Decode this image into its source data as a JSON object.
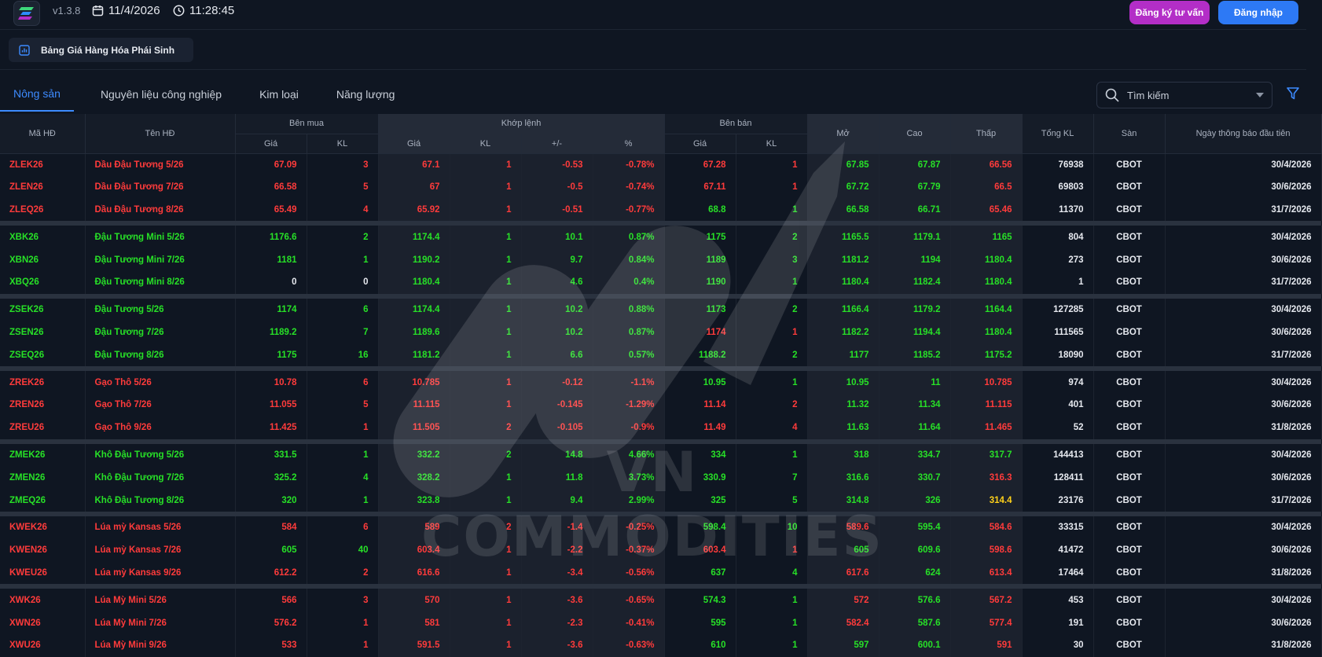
{
  "header": {
    "version": "v1.3.8",
    "date": "11/4/2026",
    "time": "11:28:45",
    "consult_label": "Đăng ký tư vấn",
    "login_label": "Đăng nhập"
  },
  "page_tab": {
    "label": "Bảng Giá Hàng Hóa Phái Sinh"
  },
  "category_tabs": [
    "Nông sản",
    "Nguyên liệu công nghiệp",
    "Kim loại",
    "Năng lượng"
  ],
  "search": {
    "placeholder": "Tìm kiếm"
  },
  "watermark": {
    "text": "VN COMMODITIES"
  },
  "table": {
    "headers": {
      "ma_hd": "Mã HĐ",
      "ten_hd": "Tên HĐ",
      "ben_mua": "Bên mua",
      "khop_lenh": "Khớp lệnh",
      "ben_ban": "Bên bán",
      "mo": "Mở",
      "cao": "Cao",
      "thap": "Thấp",
      "tong_kl": "Tổng KL",
      "san": "Sàn",
      "ngay_tb": "Ngày thông báo đầu tiên",
      "gia": "Giá",
      "kl": "KL",
      "change": "+/-",
      "pct": "%"
    },
    "groups": [
      [
        {
          "code": "ZLEK26",
          "name": "Dầu Đậu Tương 5/26",
          "buy_price": "67.09",
          "buy_kl": "3",
          "match_price": "67.1",
          "match_kl": "1",
          "change": "-0.53",
          "pct": "-0.78%",
          "sell_price": "67.28",
          "sell_kl": "1",
          "open": "67.85",
          "high": "67.87",
          "low": "66.56",
          "total_kl": "76938",
          "exchange": "CBOT",
          "notice_date": "30/4/2026",
          "colors": {
            "code": "red",
            "buy_price": "red",
            "buy_kl": "red",
            "match_price": "red",
            "match_kl": "red",
            "change": "red",
            "pct": "red",
            "sell_price": "red",
            "sell_kl": "red",
            "open": "green",
            "high": "green",
            "low": "red"
          }
        },
        {
          "code": "ZLEN26",
          "name": "Dầu Đậu Tương 7/26",
          "buy_price": "66.58",
          "buy_kl": "5",
          "match_price": "67",
          "match_kl": "1",
          "change": "-0.5",
          "pct": "-0.74%",
          "sell_price": "67.11",
          "sell_kl": "1",
          "open": "67.72",
          "high": "67.79",
          "low": "66.5",
          "total_kl": "69803",
          "exchange": "CBOT",
          "notice_date": "30/6/2026",
          "colors": {
            "code": "red",
            "buy_price": "red",
            "buy_kl": "red",
            "match_price": "red",
            "match_kl": "red",
            "change": "red",
            "pct": "red",
            "sell_price": "red",
            "sell_kl": "red",
            "open": "green",
            "high": "green",
            "low": "red"
          }
        },
        {
          "code": "ZLEQ26",
          "name": "Dầu Đậu Tương 8/26",
          "buy_price": "65.49",
          "buy_kl": "4",
          "match_price": "65.92",
          "match_kl": "1",
          "change": "-0.51",
          "pct": "-0.77%",
          "sell_price": "68.8",
          "sell_kl": "1",
          "open": "66.58",
          "high": "66.71",
          "low": "65.46",
          "total_kl": "11370",
          "exchange": "CBOT",
          "notice_date": "31/7/2026",
          "colors": {
            "code": "red",
            "buy_price": "red",
            "buy_kl": "red",
            "match_price": "red",
            "match_kl": "red",
            "change": "red",
            "pct": "red",
            "sell_price": "green",
            "sell_kl": "green",
            "open": "green",
            "high": "green",
            "low": "red"
          }
        }
      ],
      [
        {
          "code": "XBK26",
          "name": "Đậu Tương Mini 5/26",
          "buy_price": "1176.6",
          "buy_kl": "2",
          "match_price": "1174.4",
          "match_kl": "1",
          "change": "10.1",
          "pct": "0.87%",
          "sell_price": "1175",
          "sell_kl": "2",
          "open": "1165.5",
          "high": "1179.1",
          "low": "1165",
          "total_kl": "804",
          "exchange": "CBOT",
          "notice_date": "30/4/2026",
          "colors": {
            "code": "green",
            "buy_price": "green",
            "buy_kl": "green",
            "match_price": "green",
            "match_kl": "green",
            "change": "green",
            "pct": "green",
            "sell_price": "green",
            "sell_kl": "green",
            "open": "green",
            "high": "green",
            "low": "green"
          }
        },
        {
          "code": "XBN26",
          "name": "Đậu Tương Mini 7/26",
          "buy_price": "1181",
          "buy_kl": "1",
          "match_price": "1190.2",
          "match_kl": "1",
          "change": "9.7",
          "pct": "0.84%",
          "sell_price": "1189",
          "sell_kl": "3",
          "open": "1181.2",
          "high": "1194",
          "low": "1180.4",
          "total_kl": "273",
          "exchange": "CBOT",
          "notice_date": "30/6/2026",
          "colors": {
            "code": "green",
            "buy_price": "green",
            "buy_kl": "green",
            "match_price": "green",
            "match_kl": "green",
            "change": "green",
            "pct": "green",
            "sell_price": "green",
            "sell_kl": "green",
            "open": "green",
            "high": "green",
            "low": "green"
          }
        },
        {
          "code": "XBQ26",
          "name": "Đậu Tương Mini 8/26",
          "buy_price": "0",
          "buy_kl": "0",
          "match_price": "1180.4",
          "match_kl": "1",
          "change": "4.6",
          "pct": "0.4%",
          "sell_price": "1190",
          "sell_kl": "1",
          "open": "1180.4",
          "high": "1182.4",
          "low": "1180.4",
          "total_kl": "1",
          "exchange": "CBOT",
          "notice_date": "31/7/2026",
          "colors": {
            "code": "green",
            "buy_price": "white",
            "buy_kl": "white",
            "match_price": "green",
            "match_kl": "green",
            "change": "green",
            "pct": "green",
            "sell_price": "green",
            "sell_kl": "green",
            "open": "green",
            "high": "green",
            "low": "green"
          }
        }
      ],
      [
        {
          "code": "ZSEK26",
          "name": "Đậu Tương 5/26",
          "buy_price": "1174",
          "buy_kl": "6",
          "match_price": "1174.4",
          "match_kl": "1",
          "change": "10.2",
          "pct": "0.88%",
          "sell_price": "1173",
          "sell_kl": "2",
          "open": "1166.4",
          "high": "1179.2",
          "low": "1164.4",
          "total_kl": "127285",
          "exchange": "CBOT",
          "notice_date": "30/4/2026",
          "colors": {
            "code": "green",
            "buy_price": "green",
            "buy_kl": "green",
            "match_price": "green",
            "match_kl": "green",
            "change": "green",
            "pct": "green",
            "sell_price": "green",
            "sell_kl": "green",
            "open": "green",
            "high": "green",
            "low": "green"
          }
        },
        {
          "code": "ZSEN26",
          "name": "Đậu Tương 7/26",
          "buy_price": "1189.2",
          "buy_kl": "7",
          "match_price": "1189.6",
          "match_kl": "1",
          "change": "10.2",
          "pct": "0.87%",
          "sell_price": "1174",
          "sell_kl": "1",
          "open": "1182.2",
          "high": "1194.4",
          "low": "1180.4",
          "total_kl": "111565",
          "exchange": "CBOT",
          "notice_date": "30/6/2026",
          "colors": {
            "code": "green",
            "buy_price": "green",
            "buy_kl": "green",
            "match_price": "green",
            "match_kl": "green",
            "change": "green",
            "pct": "green",
            "sell_price": "red",
            "sell_kl": "red",
            "open": "green",
            "high": "green",
            "low": "green"
          }
        },
        {
          "code": "ZSEQ26",
          "name": "Đậu Tương 8/26",
          "buy_price": "1175",
          "buy_kl": "16",
          "match_price": "1181.2",
          "match_kl": "1",
          "change": "6.6",
          "pct": "0.57%",
          "sell_price": "1188.2",
          "sell_kl": "2",
          "open": "1177",
          "high": "1185.2",
          "low": "1175.2",
          "total_kl": "18090",
          "exchange": "CBOT",
          "notice_date": "31/7/2026",
          "colors": {
            "code": "green",
            "buy_price": "green",
            "buy_kl": "green",
            "match_price": "green",
            "match_kl": "green",
            "change": "green",
            "pct": "green",
            "sell_price": "green",
            "sell_kl": "green",
            "open": "green",
            "high": "green",
            "low": "green"
          }
        }
      ],
      [
        {
          "code": "ZREK26",
          "name": "Gạo Thô 5/26",
          "buy_price": "10.78",
          "buy_kl": "6",
          "match_price": "10.785",
          "match_kl": "1",
          "change": "-0.12",
          "pct": "-1.1%",
          "sell_price": "10.95",
          "sell_kl": "1",
          "open": "10.95",
          "high": "11",
          "low": "10.785",
          "total_kl": "974",
          "exchange": "CBOT",
          "notice_date": "30/4/2026",
          "colors": {
            "code": "red",
            "buy_price": "red",
            "buy_kl": "red",
            "match_price": "red",
            "match_kl": "red",
            "change": "red",
            "pct": "red",
            "sell_price": "green",
            "sell_kl": "green",
            "open": "green",
            "high": "green",
            "low": "red"
          }
        },
        {
          "code": "ZREN26",
          "name": "Gạo Thô 7/26",
          "buy_price": "11.055",
          "buy_kl": "5",
          "match_price": "11.115",
          "match_kl": "1",
          "change": "-0.145",
          "pct": "-1.29%",
          "sell_price": "11.14",
          "sell_kl": "2",
          "open": "11.32",
          "high": "11.34",
          "low": "11.115",
          "total_kl": "401",
          "exchange": "CBOT",
          "notice_date": "30/6/2026",
          "colors": {
            "code": "red",
            "buy_price": "red",
            "buy_kl": "red",
            "match_price": "red",
            "match_kl": "red",
            "change": "red",
            "pct": "red",
            "sell_price": "red",
            "sell_kl": "red",
            "open": "green",
            "high": "green",
            "low": "red"
          }
        },
        {
          "code": "ZREU26",
          "name": "Gạo Thô 9/26",
          "buy_price": "11.425",
          "buy_kl": "1",
          "match_price": "11.505",
          "match_kl": "2",
          "change": "-0.105",
          "pct": "-0.9%",
          "sell_price": "11.49",
          "sell_kl": "4",
          "open": "11.63",
          "high": "11.64",
          "low": "11.465",
          "total_kl": "52",
          "exchange": "CBOT",
          "notice_date": "31/8/2026",
          "colors": {
            "code": "red",
            "buy_price": "red",
            "buy_kl": "red",
            "match_price": "red",
            "match_kl": "red",
            "change": "red",
            "pct": "red",
            "sell_price": "red",
            "sell_kl": "red",
            "open": "green",
            "high": "green",
            "low": "red"
          }
        }
      ],
      [
        {
          "code": "ZMEK26",
          "name": "Khô Đậu Tương 5/26",
          "buy_price": "331.5",
          "buy_kl": "1",
          "match_price": "332.2",
          "match_kl": "2",
          "change": "14.8",
          "pct": "4.66%",
          "sell_price": "334",
          "sell_kl": "1",
          "open": "318",
          "high": "334.7",
          "low": "317.7",
          "total_kl": "144413",
          "exchange": "CBOT",
          "notice_date": "30/4/2026",
          "colors": {
            "code": "green",
            "buy_price": "green",
            "buy_kl": "green",
            "match_price": "green",
            "match_kl": "green",
            "change": "green",
            "pct": "green",
            "sell_price": "green",
            "sell_kl": "green",
            "open": "green",
            "high": "green",
            "low": "green"
          }
        },
        {
          "code": "ZMEN26",
          "name": "Khô Đậu Tương 7/26",
          "buy_price": "325.2",
          "buy_kl": "4",
          "match_price": "328.2",
          "match_kl": "1",
          "change": "11.8",
          "pct": "3.73%",
          "sell_price": "330.9",
          "sell_kl": "7",
          "open": "316.6",
          "high": "330.7",
          "low": "316.3",
          "total_kl": "128411",
          "exchange": "CBOT",
          "notice_date": "30/6/2026",
          "colors": {
            "code": "green",
            "buy_price": "green",
            "buy_kl": "green",
            "match_price": "green",
            "match_kl": "green",
            "change": "green",
            "pct": "green",
            "sell_price": "green",
            "sell_kl": "green",
            "open": "green",
            "high": "green",
            "low": "red"
          }
        },
        {
          "code": "ZMEQ26",
          "name": "Khô Đậu Tương 8/26",
          "buy_price": "320",
          "buy_kl": "1",
          "match_price": "323.8",
          "match_kl": "1",
          "change": "9.4",
          "pct": "2.99%",
          "sell_price": "325",
          "sell_kl": "5",
          "open": "314.8",
          "high": "326",
          "low": "314.4",
          "total_kl": "23176",
          "exchange": "CBOT",
          "notice_date": "31/7/2026",
          "colors": {
            "code": "green",
            "buy_price": "green",
            "buy_kl": "green",
            "match_price": "green",
            "match_kl": "green",
            "change": "green",
            "pct": "green",
            "sell_price": "green",
            "sell_kl": "green",
            "open": "green",
            "high": "green",
            "low": "yellow"
          }
        }
      ],
      [
        {
          "code": "KWEK26",
          "name": "Lúa mỳ Kansas 5/26",
          "buy_price": "584",
          "buy_kl": "6",
          "match_price": "589",
          "match_kl": "2",
          "change": "-1.4",
          "pct": "-0.25%",
          "sell_price": "598.4",
          "sell_kl": "10",
          "open": "589.6",
          "high": "595.4",
          "low": "584.6",
          "total_kl": "33315",
          "exchange": "CBOT",
          "notice_date": "30/4/2026",
          "colors": {
            "code": "red",
            "buy_price": "red",
            "buy_kl": "red",
            "match_price": "red",
            "match_kl": "red",
            "change": "red",
            "pct": "red",
            "sell_price": "green",
            "sell_kl": "green",
            "open": "red",
            "high": "green",
            "low": "red"
          }
        },
        {
          "code": "KWEN26",
          "name": "Lúa mỳ Kansas 7/26",
          "buy_price": "605",
          "buy_kl": "40",
          "match_price": "603.4",
          "match_kl": "1",
          "change": "-2.2",
          "pct": "-0.37%",
          "sell_price": "603.4",
          "sell_kl": "1",
          "open": "605",
          "high": "609.6",
          "low": "598.6",
          "total_kl": "41472",
          "exchange": "CBOT",
          "notice_date": "30/6/2026",
          "colors": {
            "code": "red",
            "buy_price": "green",
            "buy_kl": "green",
            "match_price": "red",
            "match_kl": "red",
            "change": "red",
            "pct": "red",
            "sell_price": "red",
            "sell_kl": "red",
            "open": "green",
            "high": "green",
            "low": "red"
          }
        },
        {
          "code": "KWEU26",
          "name": "Lúa mỳ Kansas 9/26",
          "buy_price": "612.2",
          "buy_kl": "2",
          "match_price": "616.6",
          "match_kl": "1",
          "change": "-3.4",
          "pct": "-0.56%",
          "sell_price": "637",
          "sell_kl": "4",
          "open": "617.6",
          "high": "624",
          "low": "613.4",
          "total_kl": "17464",
          "exchange": "CBOT",
          "notice_date": "31/8/2026",
          "colors": {
            "code": "red",
            "buy_price": "red",
            "buy_kl": "red",
            "match_price": "red",
            "match_kl": "red",
            "change": "red",
            "pct": "red",
            "sell_price": "green",
            "sell_kl": "green",
            "open": "red",
            "high": "green",
            "low": "red"
          }
        }
      ],
      [
        {
          "code": "XWK26",
          "name": "Lúa Mỳ Mini 5/26",
          "buy_price": "566",
          "buy_kl": "3",
          "match_price": "570",
          "match_kl": "1",
          "change": "-3.6",
          "pct": "-0.65%",
          "sell_price": "574.3",
          "sell_kl": "1",
          "open": "572",
          "high": "576.6",
          "low": "567.2",
          "total_kl": "453",
          "exchange": "CBOT",
          "notice_date": "30/4/2026",
          "colors": {
            "code": "red",
            "buy_price": "red",
            "buy_kl": "red",
            "match_price": "red",
            "match_kl": "red",
            "change": "red",
            "pct": "red",
            "sell_price": "green",
            "sell_kl": "green",
            "open": "red",
            "high": "green",
            "low": "red"
          }
        },
        {
          "code": "XWN26",
          "name": "Lúa Mỳ Mini 7/26",
          "buy_price": "576.2",
          "buy_kl": "1",
          "match_price": "581",
          "match_kl": "1",
          "change": "-2.3",
          "pct": "-0.41%",
          "sell_price": "595",
          "sell_kl": "1",
          "open": "582.4",
          "high": "587.6",
          "low": "577.4",
          "total_kl": "191",
          "exchange": "CBOT",
          "notice_date": "30/6/2026",
          "colors": {
            "code": "red",
            "buy_price": "red",
            "buy_kl": "red",
            "match_price": "red",
            "match_kl": "red",
            "change": "red",
            "pct": "red",
            "sell_price": "green",
            "sell_kl": "green",
            "open": "red",
            "high": "green",
            "low": "red"
          }
        },
        {
          "code": "XWU26",
          "name": "Lúa Mỳ Mini 9/26",
          "buy_price": "533",
          "buy_kl": "1",
          "match_price": "591.5",
          "match_kl": "1",
          "change": "-3.6",
          "pct": "-0.63%",
          "sell_price": "610",
          "sell_kl": "1",
          "open": "597",
          "high": "600.1",
          "low": "591",
          "total_kl": "30",
          "exchange": "CBOT",
          "notice_date": "31/8/2026",
          "colors": {
            "code": "red",
            "buy_price": "red",
            "buy_kl": "red",
            "match_price": "red",
            "match_kl": "red",
            "change": "red",
            "pct": "red",
            "sell_price": "green",
            "sell_kl": "green",
            "open": "green",
            "high": "green",
            "low": "red"
          }
        }
      ]
    ]
  }
}
